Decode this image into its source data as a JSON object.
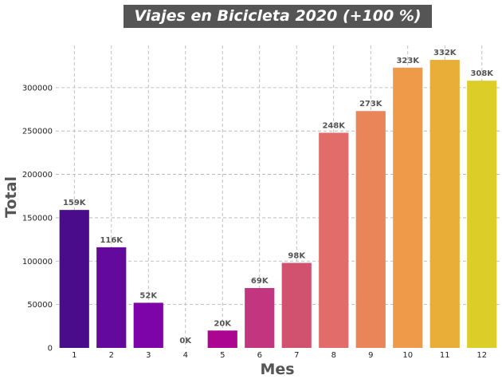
{
  "chart_data": {
    "type": "bar",
    "title": "Viajes en Bicicleta 2020 (+100 %)",
    "xlabel": "Mes",
    "ylabel": "Total",
    "categories": [
      "1",
      "2",
      "3",
      "4",
      "5",
      "6",
      "7",
      "8",
      "9",
      "10",
      "11",
      "12"
    ],
    "values": [
      159000,
      116000,
      52000,
      0,
      20000,
      69000,
      98000,
      248000,
      273000,
      323000,
      332000,
      308000
    ],
    "data_labels": [
      "159K",
      "116K",
      "52K",
      "0K",
      "20K",
      "69K",
      "98K",
      "248K",
      "273K",
      "323K",
      "332K",
      "308K"
    ],
    "colors": [
      "#4b0c8b",
      "#630a9c",
      "#7d05a7",
      "#97009e",
      "#ab0591",
      "#c2357f",
      "#d1526f",
      "#e26c69",
      "#e98559",
      "#ef9a48",
      "#e9ae37",
      "#dccd28"
    ],
    "yticks": [
      0,
      50000,
      100000,
      150000,
      200000,
      250000,
      300000
    ],
    "ytick_labels": [
      "0",
      "50000",
      "100000",
      "150000",
      "200000",
      "250000",
      "300000"
    ],
    "ylim": [
      0,
      348600
    ],
    "grid": true
  }
}
